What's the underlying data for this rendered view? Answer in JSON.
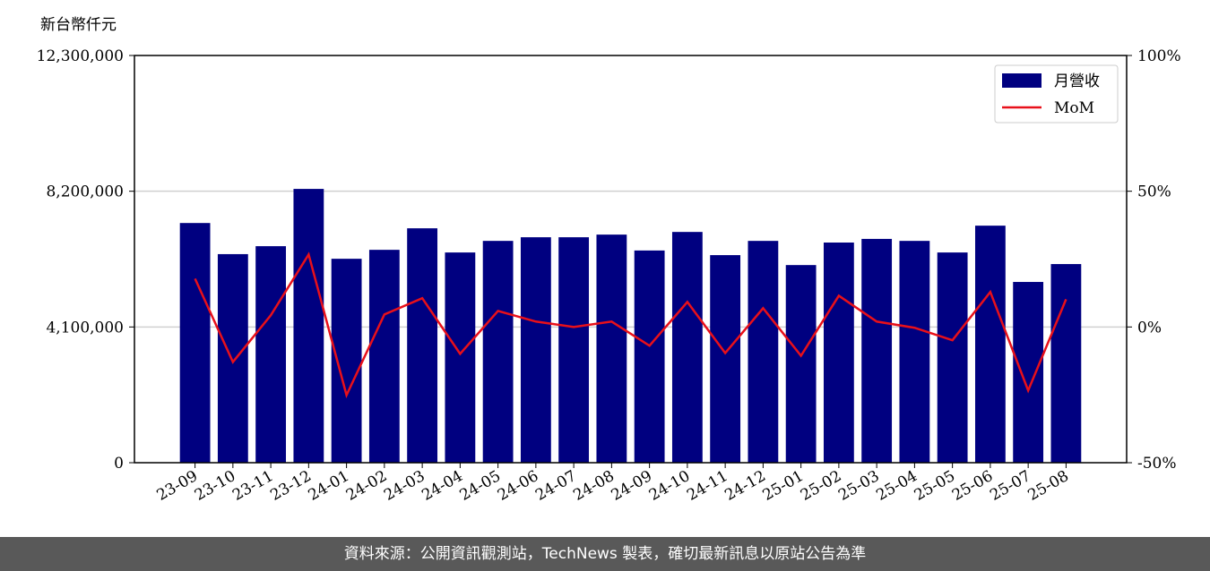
{
  "chart_data": {
    "type": "bar_line",
    "y_label": "新台幣仟元",
    "source": "資料來源：公開資訊觀測站，TechNews 製表，確切最新訊息以原站公告為準",
    "categories": [
      "23-09",
      "23-10",
      "23-11",
      "23-12",
      "24-01",
      "24-02",
      "24-03",
      "24-04",
      "24-05",
      "24-06",
      "24-07",
      "24-08",
      "24-09",
      "24-10",
      "24-11",
      "24-12",
      "25-01",
      "25-02",
      "25-03",
      "25-04",
      "25-05",
      "25-06",
      "25-07",
      "25-08"
    ],
    "series": [
      {
        "name": "月營收",
        "color": "#000080",
        "type": "bar",
        "values": [
          7240000,
          6300000,
          6540000,
          8270000,
          6160000,
          6430000,
          7080000,
          6350000,
          6700000,
          6810000,
          6810000,
          6890000,
          6410000,
          6970000,
          6270000,
          6700000,
          5970000,
          6650000,
          6760000,
          6700000,
          6350000,
          7160000,
          5460000,
          6000000
        ]
      },
      {
        "name": "MoM",
        "color": "#e8101a",
        "type": "line",
        "axis": "y2",
        "values": [
          17.8,
          -12.9,
          4.3,
          26.7,
          -25.1,
          4.6,
          10.6,
          -9.9,
          5.9,
          2.0,
          0,
          2.0,
          -6.9,
          9.2,
          -9.6,
          6.9,
          -10.6,
          11.5,
          2.0,
          -0.3,
          -4.9,
          12.9,
          -23.4,
          10.2
        ]
      }
    ],
    "ylim": [
      0,
      12300000
    ],
    "yticks": [
      0,
      {
        "value": 4100000,
        "label": "4,100,000"
      },
      {
        "value": 8200000,
        "label": "8,200,000"
      },
      {
        "value": 12300000,
        "label": "12,300,000"
      }
    ],
    "y2lim": [
      -50,
      100
    ],
    "y2ticks": [
      {
        "value": -50,
        "label": "-50%"
      },
      {
        "value": 0,
        "label": "0%"
      },
      {
        "value": 50,
        "label": "50%"
      },
      {
        "value": 100,
        "label": "100%"
      }
    ],
    "grid": true,
    "legend": "upper right"
  }
}
